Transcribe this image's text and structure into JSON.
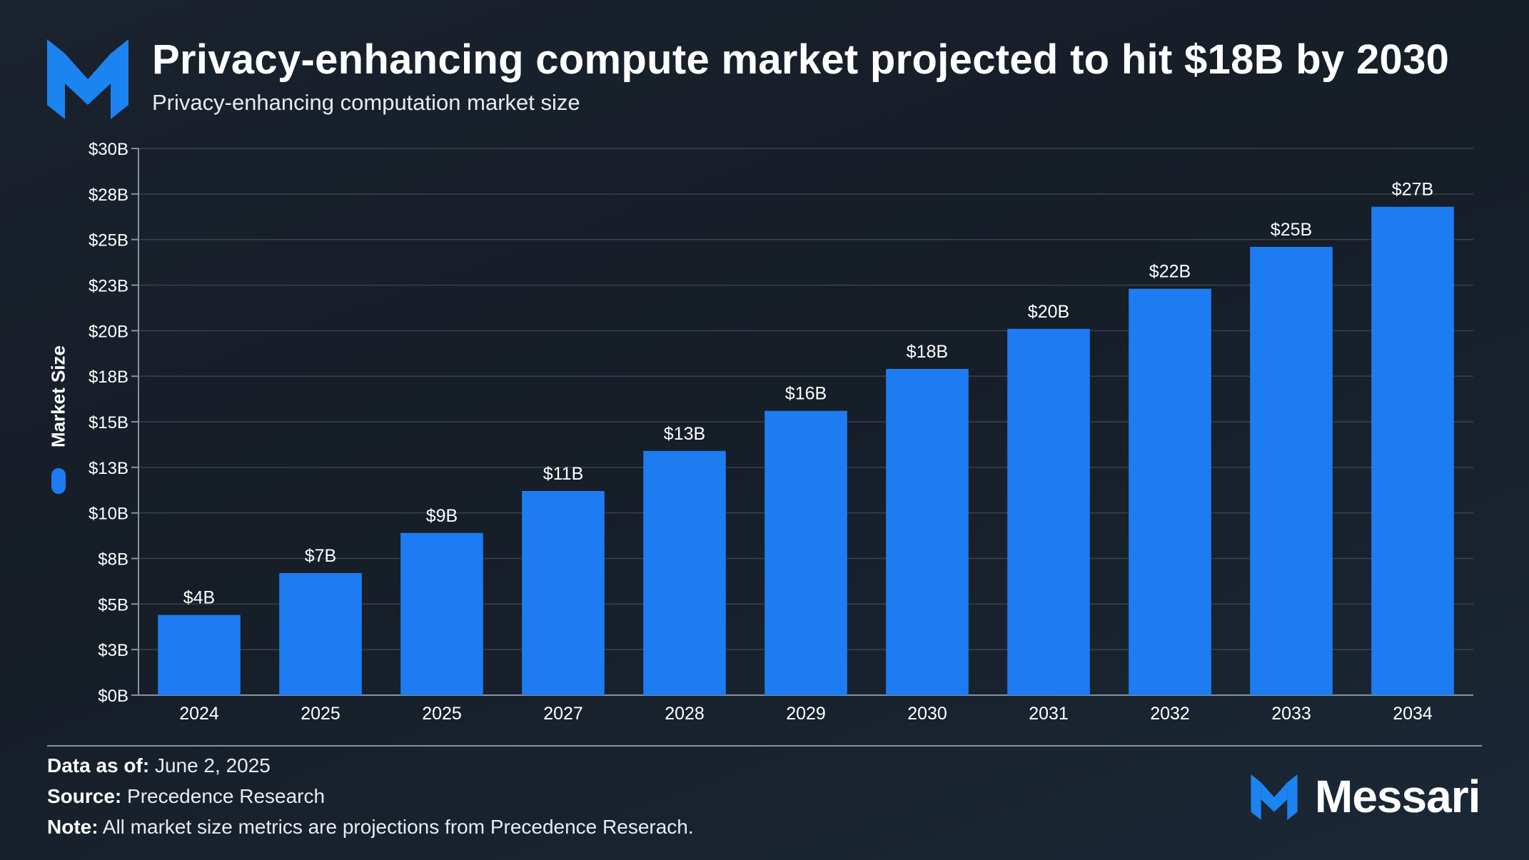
{
  "header": {
    "title": "Privacy-enhancing compute market projected to hit $18B by 2030",
    "subtitle": "Privacy-enhancing computation market size"
  },
  "legend": {
    "label": "Market Size",
    "color": "#1e7cf2",
    "icon": "legend-swatch-icon"
  },
  "chart_data": {
    "type": "bar",
    "title": "Privacy-enhancing compute market projected to hit $18B by 2030",
    "subtitle": "Privacy-enhancing computation market size",
    "xlabel": "",
    "ylabel": "Market Size",
    "ylim": [
      0,
      30
    ],
    "yticks": [
      0,
      2.5,
      5,
      7.5,
      10,
      12.5,
      15,
      17.5,
      20,
      22.5,
      25,
      27.5,
      30
    ],
    "ytick_labels": [
      "$0B",
      "$3B",
      "$5B",
      "$8B",
      "$10B",
      "$13B",
      "$15B",
      "$18B",
      "$20B",
      "$23B",
      "$25B",
      "$28B",
      "$30B"
    ],
    "categories": [
      "2024",
      "2025",
      "2025",
      "2027",
      "2028",
      "2029",
      "2030",
      "2031",
      "2032",
      "2033",
      "2034"
    ],
    "values": [
      4.4,
      6.7,
      8.9,
      11.2,
      13.4,
      15.6,
      17.9,
      20.1,
      22.3,
      24.6,
      26.8
    ],
    "data_labels": [
      "$4B",
      "$7B",
      "$9B",
      "$11B",
      "$13B",
      "$16B",
      "$18B",
      "$20B",
      "$22B",
      "$25B",
      "$27B"
    ],
    "series": [
      {
        "name": "Market Size",
        "color": "#1e7cf2"
      }
    ],
    "grid": true,
    "legend_position": "left"
  },
  "footer": {
    "data_as_of_label": "Data as of:",
    "data_as_of_value": "June 2, 2025",
    "source_label": "Source:",
    "source_value": "Precedence Research",
    "note_label": "Note:",
    "note_value": "All market size metrics are projections from Precedence Reserach."
  },
  "brand": {
    "name": "Messari",
    "icon": "messari-logo-icon"
  },
  "colors": {
    "accent": "#1e7cf2",
    "logo": "#1b84f0",
    "background": "#19212c",
    "grid": "#3a424d"
  }
}
